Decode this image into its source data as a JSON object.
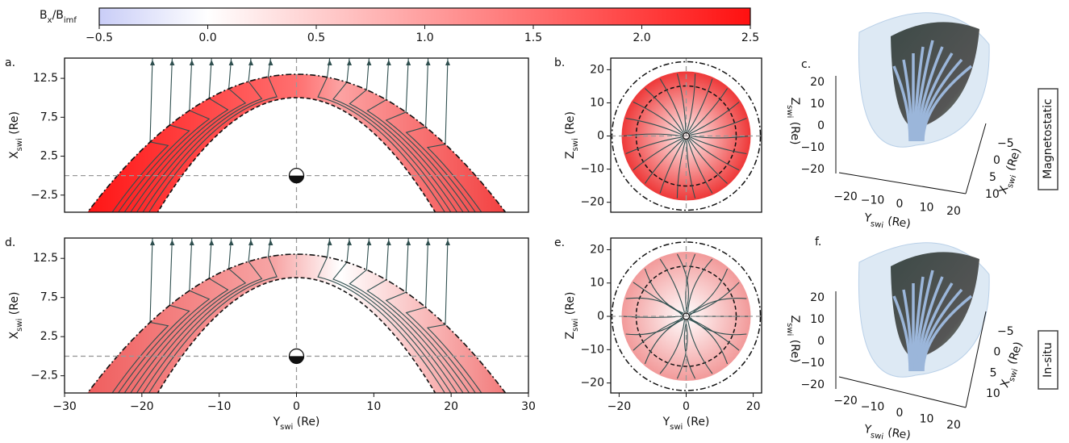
{
  "row_labels": [
    "Magnetostatic",
    "In-situ"
  ],
  "chart_data": [
    {
      "type": "colorbar",
      "label": [
        "B",
        "x",
        "/B",
        "imf"
      ],
      "lim": [
        -0.5,
        2.5
      ],
      "ticks": [
        {
          "value": -0.5,
          "label": "−0.5"
        },
        {
          "value": 0,
          "label": "0.0"
        },
        0.5,
        {
          "value": 1,
          "label": "1.0"
        },
        1.5,
        {
          "value": 2,
          "label": "2.0"
        },
        2.5
      ]
    },
    {
      "type": "heatmap",
      "panel_label": "a.",
      "ylabel": [
        "X",
        "swi",
        " (Re)"
      ],
      "xlim": [
        -30,
        30
      ],
      "ylim": [
        -4.7,
        15.1
      ],
      "yticks": [
        {
          "value": -2.5,
          "label": "−2.5"
        },
        2.5,
        7.5,
        12.5
      ]
    },
    {
      "type": "disk",
      "panel_label": "b.",
      "ylabel": [
        "Z",
        "swi",
        " (Re)"
      ],
      "xlim": [
        -22.5,
        22.5
      ],
      "ylim": [
        -23,
        23.5
      ],
      "yticks": [
        {
          "value": -20,
          "label": "−20"
        },
        {
          "value": -10,
          "label": "−10"
        },
        0,
        10,
        20
      ]
    },
    {
      "type": "surface3d",
      "panel_label": "c.",
      "zlabel": [
        "Z",
        "swi",
        " (Re)"
      ],
      "ylabel": [
        "Y",
        "swi",
        " (Re)"
      ],
      "xlabel": [
        "X",
        "swi",
        " (Re)"
      ],
      "zticks": [
        20,
        10,
        0,
        {
          "value": -10,
          "label": "−10"
        },
        {
          "value": -20,
          "label": "−20"
        }
      ],
      "yticks": [
        {
          "value": -20,
          "label": "−20"
        },
        {
          "value": -10,
          "label": "−10"
        },
        0,
        10,
        20
      ],
      "xticks": [
        {
          "value": -5,
          "label": "−5"
        },
        0,
        5,
        10
      ]
    },
    {
      "type": "heatmap",
      "panel_label": "d.",
      "ylabel": [
        "X",
        "swi",
        " (Re)"
      ],
      "xlabel": [
        "Y",
        "swi",
        " (Re)"
      ],
      "xlim": [
        -30,
        30
      ],
      "ylim": [
        -4.7,
        15.1
      ],
      "yticks": [
        {
          "value": -2.5,
          "label": "−2.5"
        },
        2.5,
        7.5,
        12.5
      ],
      "xticks": [
        {
          "value": -30,
          "label": "−30"
        },
        {
          "value": -20,
          "label": "−20"
        },
        {
          "value": -10,
          "label": "−10"
        },
        0,
        10,
        20,
        30
      ]
    },
    {
      "type": "disk",
      "panel_label": "e.",
      "ylabel": [
        "Z",
        "swi",
        " (Re)"
      ],
      "xlabel": [
        "Y",
        "swi",
        " (Re)"
      ],
      "xlim": [
        -22.5,
        22.5
      ],
      "ylim": [
        -23,
        23.5
      ],
      "yticks": [
        {
          "value": -20,
          "label": "−20"
        },
        {
          "value": -10,
          "label": "−10"
        },
        0,
        10,
        20
      ],
      "xticks": [
        {
          "value": -20,
          "label": "−20"
        },
        0,
        20
      ]
    },
    {
      "type": "surface3d",
      "panel_label": "f.",
      "zlabel": [
        "Z",
        "swi",
        " (Re)"
      ],
      "ylabel": [
        "Y",
        "swi",
        " (Re)"
      ],
      "xlabel": [
        "X",
        "swi",
        " (Re)"
      ],
      "zticks": [
        20,
        10,
        0,
        {
          "value": -10,
          "label": "−10"
        },
        {
          "value": -20,
          "label": "−20"
        }
      ],
      "yticks": [
        {
          "value": -20,
          "label": "−20"
        },
        {
          "value": -10,
          "label": "−10"
        },
        0,
        10,
        20
      ],
      "xticks": [
        {
          "value": -5,
          "label": "−5"
        },
        0,
        5,
        10
      ]
    }
  ]
}
